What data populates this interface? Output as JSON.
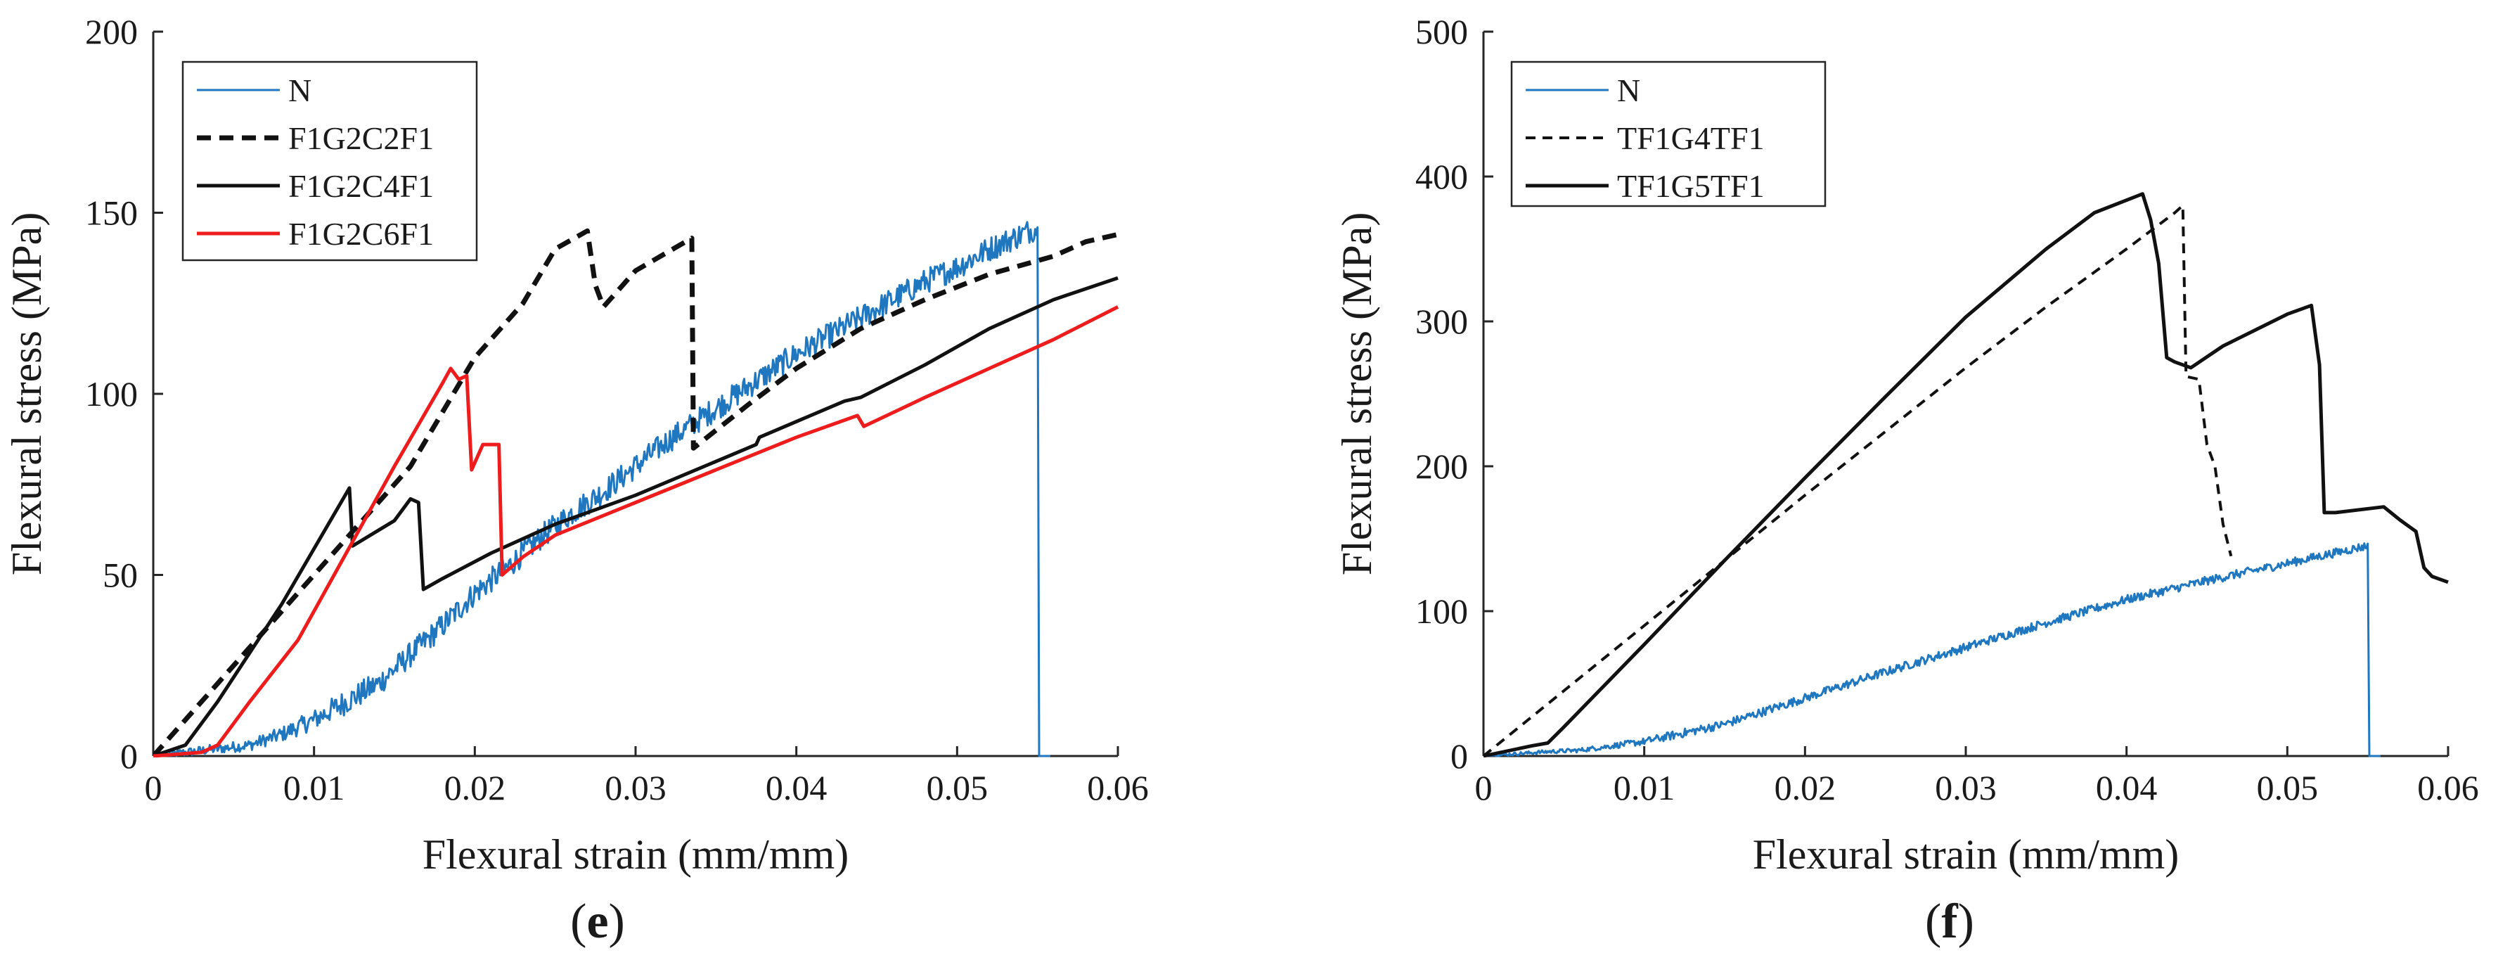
{
  "colors": {
    "axis": "#262626",
    "N": "#1f77c0",
    "black": "#111111",
    "red": "#ee1c1c"
  },
  "chart_data": [
    {
      "type": "line",
      "panel_label": "e",
      "xlabel": "Flexural strain (mm/mm)",
      "ylabel": "Flexural stress (MPa)",
      "xlim": [
        0,
        0.06
      ],
      "ylim": [
        0,
        200
      ],
      "xticks": [
        "0",
        "0.01",
        "0.02",
        "0.03",
        "0.04",
        "0.05",
        "0.06"
      ],
      "yticks": [
        "0",
        "50",
        "100",
        "150",
        "200"
      ],
      "legend_position": "top-left",
      "series": [
        {
          "name": "N",
          "color": "#1f77c0",
          "dash": "solid",
          "width": 3,
          "noise": 3.5,
          "points": [
            [
              0,
              0
            ],
            [
              0.002,
              1
            ],
            [
              0.004,
              2
            ],
            [
              0.006,
              3
            ],
            [
              0.008,
              6
            ],
            [
              0.01,
              10
            ],
            [
              0.012,
              15
            ],
            [
              0.014,
              20
            ],
            [
              0.016,
              28
            ],
            [
              0.018,
              36
            ],
            [
              0.02,
              45
            ],
            [
              0.022,
              52
            ],
            [
              0.024,
              60
            ],
            [
              0.026,
              67
            ],
            [
              0.028,
              73
            ],
            [
              0.03,
              80
            ],
            [
              0.032,
              87
            ],
            [
              0.034,
              93
            ],
            [
              0.036,
              99
            ],
            [
              0.038,
              105
            ],
            [
              0.04,
              111
            ],
            [
              0.042,
              116
            ],
            [
              0.044,
              121
            ],
            [
              0.046,
              126
            ],
            [
              0.048,
              131
            ],
            [
              0.05,
              135
            ],
            [
              0.052,
              140
            ],
            [
              0.054,
              144
            ],
            [
              0.055,
              146
            ],
            [
              0.0551,
              0
            ],
            [
              0.0558,
              0
            ]
          ]
        },
        {
          "name": "F1G2C2F1",
          "color": "#111111",
          "dash": "20,12",
          "width": 7,
          "noise": 0,
          "points": [
            [
              0,
              0
            ],
            [
              0.004,
              20
            ],
            [
              0.008,
              40
            ],
            [
              0.012,
              60
            ],
            [
              0.016,
              80
            ],
            [
              0.02,
              110
            ],
            [
              0.023,
              125
            ],
            [
              0.025,
              140
            ],
            [
              0.027,
              145
            ],
            [
              0.0275,
              130
            ],
            [
              0.028,
              124
            ],
            [
              0.03,
              134
            ],
            [
              0.0335,
              143
            ],
            [
              0.0336,
              85
            ],
            [
              0.037,
              97
            ],
            [
              0.04,
              107
            ],
            [
              0.044,
              118
            ],
            [
              0.048,
              126
            ],
            [
              0.052,
              133
            ],
            [
              0.056,
              138
            ],
            [
              0.058,
              142
            ],
            [
              0.06,
              144
            ]
          ]
        },
        {
          "name": "F1G2C4F1",
          "color": "#111111",
          "dash": "solid",
          "width": 5,
          "noise": 0,
          "points": [
            [
              0,
              0
            ],
            [
              0.002,
              3
            ],
            [
              0.004,
              15
            ],
            [
              0.008,
              42
            ],
            [
              0.0122,
              74
            ],
            [
              0.0124,
              58
            ],
            [
              0.015,
              65
            ],
            [
              0.016,
              71
            ],
            [
              0.0165,
              70
            ],
            [
              0.0168,
              46
            ],
            [
              0.018,
              49
            ],
            [
              0.021,
              56
            ],
            [
              0.025,
              64
            ],
            [
              0.03,
              72
            ],
            [
              0.0375,
              86
            ],
            [
              0.0377,
              88
            ],
            [
              0.043,
              98
            ],
            [
              0.044,
              99
            ],
            [
              0.048,
              108
            ],
            [
              0.052,
              118
            ],
            [
              0.056,
              126
            ],
            [
              0.06,
              132
            ]
          ]
        },
        {
          "name": "F1G2C6F1",
          "color": "#ee1c1c",
          "dash": "solid",
          "width": 5,
          "noise": 0,
          "points": [
            [
              0,
              0
            ],
            [
              0.003,
              1
            ],
            [
              0.004,
              3
            ],
            [
              0.006,
              15
            ],
            [
              0.009,
              32
            ],
            [
              0.012,
              56
            ],
            [
              0.015,
              80
            ],
            [
              0.018,
              103
            ],
            [
              0.0185,
              107
            ],
            [
              0.019,
              104
            ],
            [
              0.0195,
              105
            ],
            [
              0.0198,
              79
            ],
            [
              0.0205,
              86
            ],
            [
              0.0215,
              86
            ],
            [
              0.0217,
              50
            ],
            [
              0.023,
              55
            ],
            [
              0.025,
              61
            ],
            [
              0.03,
              70
            ],
            [
              0.035,
              79
            ],
            [
              0.04,
              88
            ],
            [
              0.0438,
              94
            ],
            [
              0.0442,
              91
            ],
            [
              0.048,
              99
            ],
            [
              0.052,
              107
            ],
            [
              0.056,
              115
            ],
            [
              0.06,
              124
            ]
          ]
        }
      ]
    },
    {
      "type": "line",
      "panel_label": "f",
      "xlabel": "Flexural strain (mm/mm)",
      "ylabel": "Flexural stress (MPa)",
      "xlim": [
        0,
        0.06
      ],
      "ylim": [
        0,
        500
      ],
      "xticks": [
        "0",
        "0.01",
        "0.02",
        "0.03",
        "0.04",
        "0.05",
        "0.06"
      ],
      "yticks": [
        "0",
        "100",
        "200",
        "300",
        "400",
        "500"
      ],
      "legend_position": "top-left",
      "series": [
        {
          "name": "N",
          "color": "#1f77c0",
          "dash": "solid",
          "width": 3,
          "noise": 3,
          "points": [
            [
              0,
              0
            ],
            [
              0.004,
              3
            ],
            [
              0.006,
              4
            ],
            [
              0.01,
              10
            ],
            [
              0.015,
              22
            ],
            [
              0.02,
              40
            ],
            [
              0.025,
              58
            ],
            [
              0.03,
              75
            ],
            [
              0.035,
              92
            ],
            [
              0.04,
              108
            ],
            [
              0.045,
              121
            ],
            [
              0.05,
              133
            ],
            [
              0.0545,
              144
            ],
            [
              0.055,
              145
            ],
            [
              0.0551,
              0
            ],
            [
              0.0558,
              0
            ]
          ]
        },
        {
          "name": "TF1G4TF1",
          "color": "#111111",
          "dash": "14,10",
          "width": 4,
          "noise": 0,
          "points": [
            [
              0,
              0
            ],
            [
              0.005,
              45
            ],
            [
              0.01,
              90
            ],
            [
              0.015,
              135
            ],
            [
              0.02,
              180
            ],
            [
              0.025,
              224
            ],
            [
              0.03,
              268
            ],
            [
              0.035,
              310
            ],
            [
              0.04,
              350
            ],
            [
              0.043,
              375
            ],
            [
              0.0435,
              380
            ],
            [
              0.0437,
              262
            ],
            [
              0.0445,
              260
            ],
            [
              0.045,
              215
            ],
            [
              0.0455,
              200
            ],
            [
              0.046,
              160
            ],
            [
              0.0465,
              138
            ]
          ]
        },
        {
          "name": "TF1G5TF1",
          "color": "#111111",
          "dash": "solid",
          "width": 5,
          "noise": 0,
          "points": [
            [
              0,
              0
            ],
            [
              0.003,
              7
            ],
            [
              0.004,
              9
            ],
            [
              0.005,
              20
            ],
            [
              0.01,
              77
            ],
            [
              0.015,
              135
            ],
            [
              0.02,
              192
            ],
            [
              0.025,
              248
            ],
            [
              0.03,
              303
            ],
            [
              0.035,
              350
            ],
            [
              0.038,
              375
            ],
            [
              0.041,
              388
            ],
            [
              0.0415,
              370
            ],
            [
              0.042,
              340
            ],
            [
              0.0425,
              275
            ],
            [
              0.043,
              272
            ],
            [
              0.044,
              268
            ],
            [
              0.046,
              283
            ],
            [
              0.048,
              294
            ],
            [
              0.05,
              305
            ],
            [
              0.0515,
              311
            ],
            [
              0.052,
              270
            ],
            [
              0.0523,
              168
            ],
            [
              0.053,
              168
            ],
            [
              0.056,
              172
            ],
            [
              0.057,
              163
            ],
            [
              0.058,
              155
            ],
            [
              0.0585,
              130
            ],
            [
              0.059,
              124
            ],
            [
              0.06,
              120
            ]
          ]
        }
      ]
    }
  ]
}
